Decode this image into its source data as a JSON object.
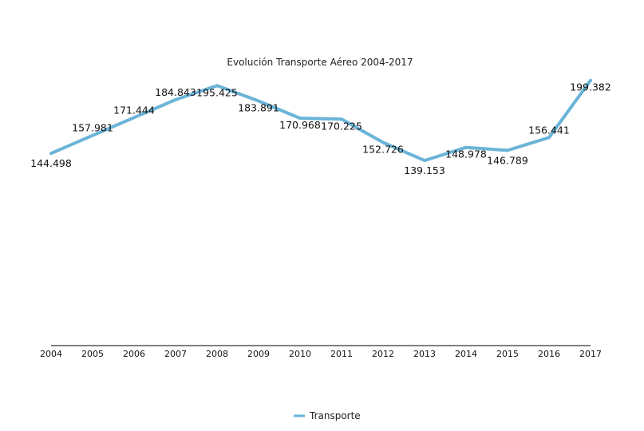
{
  "chart_data": {
    "type": "line",
    "title": "Evolución Transporte Aéreo 2004-2017",
    "xlabel": "",
    "ylabel": "",
    "x": [
      "2004",
      "2005",
      "2006",
      "2007",
      "2008",
      "2009",
      "2010",
      "2011",
      "2012",
      "2013",
      "2014",
      "2015",
      "2016",
      "2017"
    ],
    "series": [
      {
        "name": "Transporte",
        "values": [
          144498,
          157981,
          171444,
          184843,
          195425,
          183891,
          170968,
          170225,
          152726,
          139153,
          148978,
          146789,
          156441,
          199382
        ],
        "labels": [
          "144.498",
          "157.981",
          "171.444",
          "184.843",
          "195.425",
          "183.891",
          "170.968",
          "170.225",
          "152.726",
          "139.153",
          "148.978",
          "146.789",
          "156.441",
          "199.382"
        ]
      }
    ],
    "ylim": [
      0,
      225000
    ],
    "grid": false,
    "y_axis_visible": false,
    "legend_position": "bottom-center",
    "colors": {
      "line": "#6ab4d8",
      "axis": "#000000"
    }
  }
}
